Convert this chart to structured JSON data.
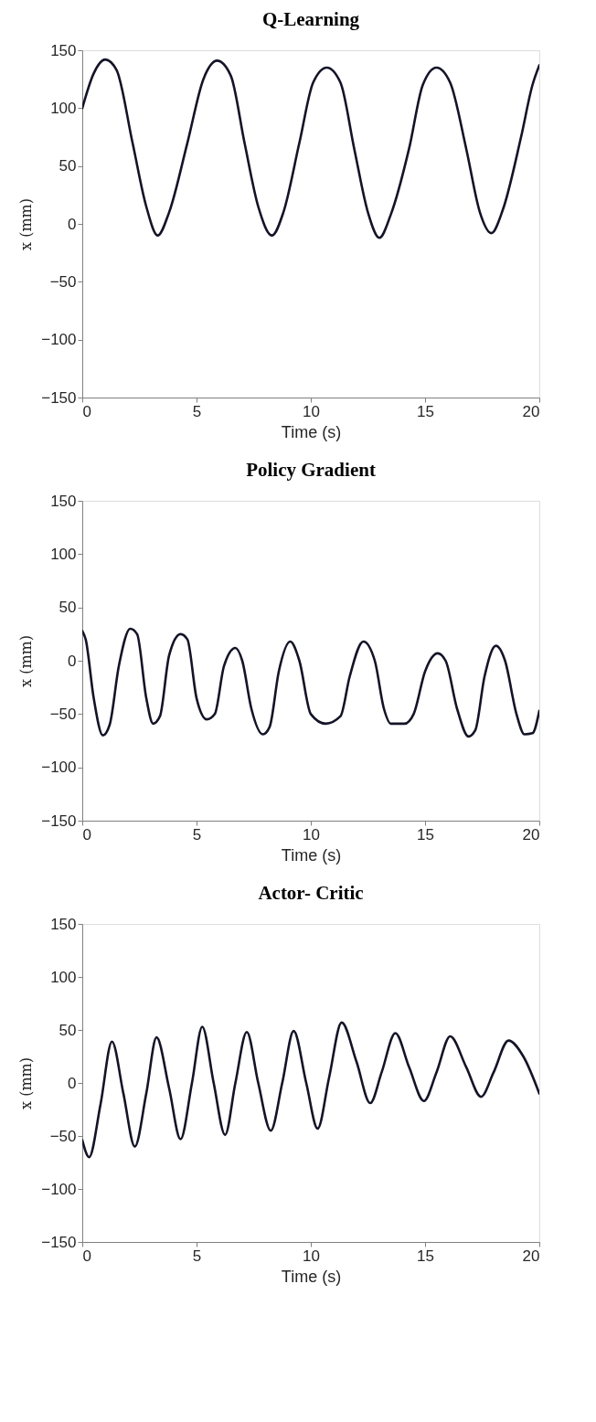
{
  "chart_data": [
    {
      "type": "line",
      "title": "Q-Learning",
      "xlabel": "Time (s)",
      "ylabel": "x (mm)",
      "xlim": [
        0,
        20
      ],
      "ylim": [
        -150,
        150
      ],
      "xticks": [
        0,
        5,
        10,
        15,
        20
      ],
      "yticks": [
        -150,
        -100,
        -50,
        0,
        50,
        100,
        150
      ],
      "grid": false,
      "line_style": "solid",
      "series": [
        {
          "color": "#141428",
          "x": [
            0,
            0.5,
            1.0,
            1.5,
            2.2,
            2.8,
            3.3,
            3.8,
            4.6,
            5.3,
            5.9,
            6.5,
            7.1,
            7.7,
            8.3,
            8.8,
            9.5,
            10.1,
            10.7,
            11.3,
            11.9,
            12.5,
            13.0,
            13.5,
            14.3,
            14.9,
            15.5,
            16.1,
            16.8,
            17.4,
            17.9,
            18.4,
            19.2,
            19.7,
            20
          ],
          "values": [
            100,
            130,
            142,
            133,
            70,
            15,
            -10,
            10,
            70,
            125,
            141,
            128,
            70,
            15,
            -10,
            10,
            70,
            122,
            135,
            122,
            65,
            10,
            -12,
            8,
            65,
            120,
            135,
            122,
            65,
            10,
            -8,
            12,
            75,
            120,
            137
          ]
        }
      ]
    },
    {
      "type": "line",
      "title": "Policy Gradient",
      "xlabel": "Time (s)",
      "ylabel": "x (mm)",
      "xlim": [
        0,
        20
      ],
      "ylim": [
        -150,
        150
      ],
      "xticks": [
        0,
        5,
        10,
        15,
        20
      ],
      "yticks": [
        -150,
        -100,
        -50,
        0,
        50,
        100,
        150
      ],
      "grid": false,
      "line_style": "solid",
      "series": [
        {
          "color": "#141428",
          "x": [
            0,
            0.15,
            0.5,
            0.9,
            1.2,
            1.6,
            2.1,
            2.4,
            2.8,
            3.1,
            3.4,
            3.8,
            4.3,
            4.6,
            5.0,
            5.45,
            5.8,
            6.2,
            6.7,
            7.0,
            7.4,
            7.9,
            8.2,
            8.6,
            9.1,
            9.5,
            10.0,
            10.65,
            11.3,
            11.7,
            12.3,
            12.8,
            13.2,
            13.5,
            14.1,
            14.5,
            15.0,
            15.55,
            15.9,
            16.4,
            16.9,
            17.2,
            17.6,
            18.1,
            18.5,
            19.0,
            19.35,
            19.7,
            20
          ],
          "values": [
            28,
            20,
            -35,
            -70,
            -60,
            -5,
            30,
            25,
            -35,
            -59,
            -52,
            5,
            25,
            20,
            -35,
            -55,
            -50,
            -5,
            12,
            0,
            -45,
            -69,
            -62,
            -10,
            18,
            0,
            -50,
            -59,
            -52,
            -15,
            18,
            0,
            -45,
            -59,
            -59,
            -50,
            -10,
            7,
            0,
            -45,
            -71,
            -65,
            -15,
            14,
            0,
            -50,
            -69,
            -68,
            -47
          ]
        }
      ]
    },
    {
      "type": "line",
      "title": "Actor- Critic",
      "xlabel": "Time (s)",
      "ylabel": "x (mm)",
      "xlim": [
        0,
        20
      ],
      "ylim": [
        -150,
        150
      ],
      "xticks": [
        0,
        5,
        10,
        15,
        20
      ],
      "yticks": [
        -150,
        -100,
        -50,
        0,
        50,
        100,
        150
      ],
      "grid": false,
      "line_style": "solid",
      "series": [
        {
          "color": "#141428",
          "x": [
            0,
            0.3,
            0.8,
            1.3,
            1.8,
            2.3,
            2.8,
            3.25,
            3.8,
            4.3,
            4.8,
            5.25,
            5.75,
            6.25,
            6.7,
            7.2,
            7.7,
            8.25,
            8.75,
            9.25,
            9.8,
            10.3,
            10.8,
            11.35,
            12.0,
            12.6,
            13.1,
            13.7,
            14.3,
            14.95,
            15.5,
            16.1,
            16.8,
            17.45,
            18.0,
            18.65,
            19.3,
            20
          ],
          "values": [
            -54,
            -70,
            -20,
            39,
            -10,
            -60,
            -10,
            43,
            -5,
            -53,
            0,
            53,
            0,
            -49,
            0,
            48,
            0,
            -45,
            0,
            49,
            0,
            -43,
            5,
            57,
            20,
            -19,
            10,
            47,
            15,
            -17,
            10,
            44,
            15,
            -13,
            10,
            40,
            25,
            -10
          ]
        }
      ]
    }
  ]
}
